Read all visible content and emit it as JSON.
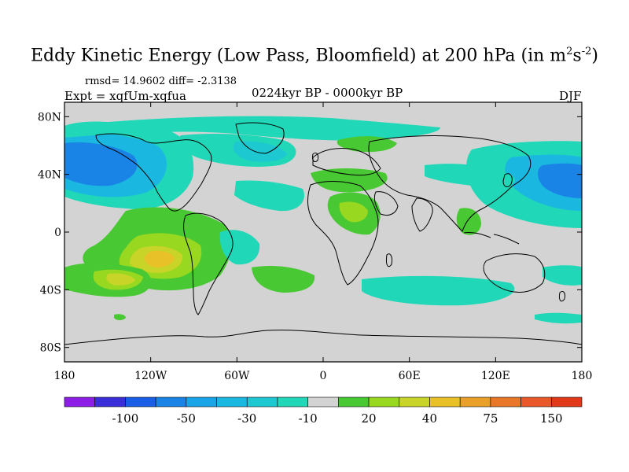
{
  "title_main": "Eddy Kinetic Energy (Low Pass, Bloomfield) at 200 hPa (in m",
  "title_sup1": "2",
  "title_mid": "s",
  "title_sup2": "-2",
  "title_end": ")",
  "stats": "rmsd= 14.9602  diff= -2.3138",
  "experiment": "Expt = xqfUm-xqfua",
  "period": "0224kyr BP - 0000kyr BP",
  "season": "DJF",
  "chart_data": {
    "type": "heatmap",
    "projection": "cylindrical equidistant",
    "x_ticks": [
      "180",
      "120W",
      "60W",
      "0",
      "60E",
      "120E",
      "180"
    ],
    "y_ticks": [
      "80N",
      "40N",
      "0",
      "40S",
      "80S"
    ],
    "xlim": [
      -180,
      180
    ],
    "ylim": [
      -90,
      90
    ],
    "colorbar": {
      "labels": [
        "-100",
        "-50",
        "-30",
        "-10",
        "20",
        "40",
        "75",
        "150"
      ],
      "colors": [
        "#8c1ee6",
        "#3a2ed8",
        "#1a5ee8",
        "#1a84e6",
        "#1aa4e8",
        "#1ab8e0",
        "#1ec8d0",
        "#20d8b8",
        "#d3d3d3",
        "#48c832",
        "#98d820",
        "#c8d428",
        "#e8c028",
        "#e8a028",
        "#e87828",
        "#e85828",
        "#e03818"
      ]
    },
    "fill_colors": {
      "background": "#d3d3d3",
      "neg_10_20": "#20d8b8",
      "neg_20_30": "#1ec8d0",
      "neg_30_40": "#1ab8e0",
      "neg_40_50": "#1aa4e8",
      "neg_50_75": "#1a84e6",
      "pos_10_20": "#48c832",
      "pos_20_30": "#98d820",
      "pos_30_40": "#c8d428",
      "pos_40_50": "#e8c028"
    }
  }
}
